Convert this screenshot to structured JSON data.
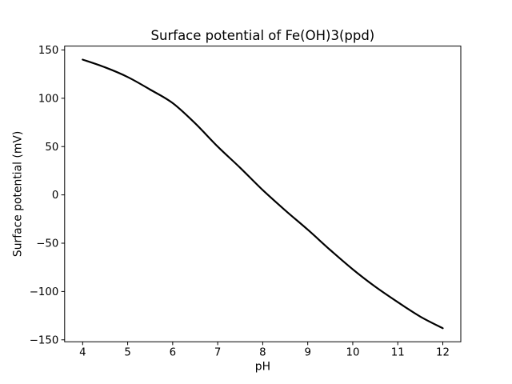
{
  "figure": {
    "background": "#ffffff",
    "text_color": "#000000",
    "spine_color": "#000000"
  },
  "chart_data": {
    "type": "line",
    "title": "Surface potential of Fe(OH)3(ppd)",
    "xlabel": "pH",
    "ylabel": "Surface potential (mV)",
    "xlim": [
      3.6,
      12.4
    ],
    "ylim": [
      -152,
      154
    ],
    "x_ticks": [
      4,
      5,
      6,
      7,
      8,
      9,
      10,
      11,
      12
    ],
    "x_tick_labels": [
      "4",
      "5",
      "6",
      "7",
      "8",
      "9",
      "10",
      "11",
      "12"
    ],
    "y_ticks": [
      -150,
      -100,
      -50,
      0,
      50,
      100,
      150
    ],
    "y_tick_labels": [
      "−150",
      "−100",
      "−50",
      "0",
      "50",
      "100",
      "150"
    ],
    "grid": false,
    "legend": "none",
    "series": [
      {
        "name": "surface-potential-vs-pH",
        "color": "#000000",
        "line_width": 2.2,
        "x": [
          4.0,
          4.5,
          5.0,
          5.5,
          6.0,
          6.5,
          7.0,
          7.5,
          8.0,
          8.5,
          9.0,
          9.5,
          10.0,
          10.5,
          11.0,
          11.5,
          12.0
        ],
        "y": [
          140,
          132,
          122,
          109,
          95,
          74,
          50,
          28,
          5,
          -16,
          -36,
          -57,
          -77,
          -95,
          -111,
          -126,
          -138
        ]
      }
    ],
    "annotations": {
      "zero_crossing_pH": 8.1
    }
  }
}
